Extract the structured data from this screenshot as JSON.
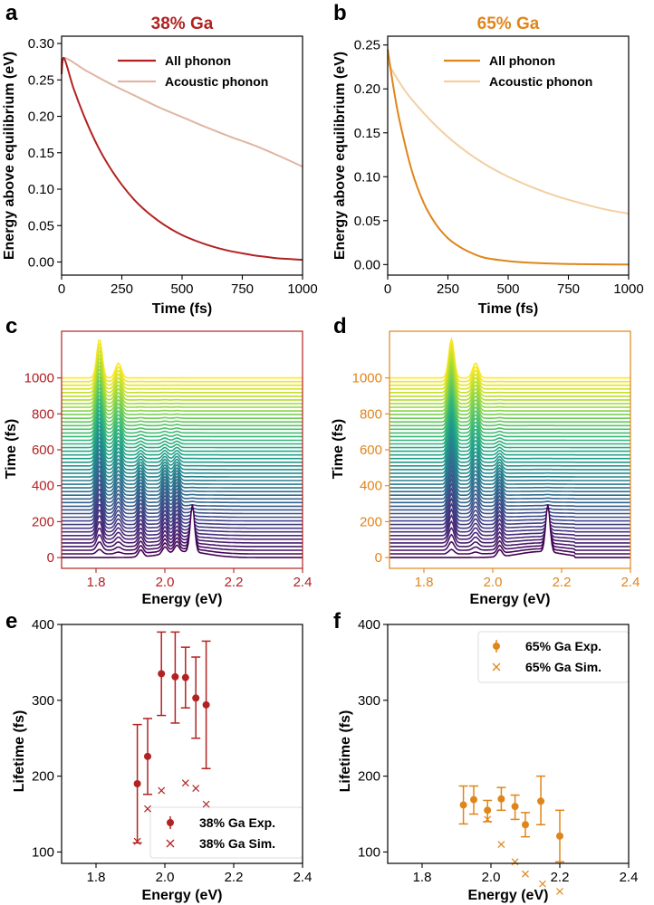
{
  "colors": {
    "red": "#b22222",
    "orange": "#e0851a",
    "red_light": "#e0b5a3",
    "orange_light": "#f3cfa2"
  },
  "chart_data": [
    {
      "panel": "a",
      "type": "line",
      "title": "38% Ga",
      "xlabel": "Time (fs)",
      "ylabel": "Energy above equilibrium (eV)",
      "xlim": [
        0,
        1000
      ],
      "ylim": [
        -0.018,
        0.31
      ],
      "xticks": [
        "0",
        "250",
        "500",
        "750",
        "1000"
      ],
      "yticks": [
        "0.00",
        "0.05",
        "0.10",
        "0.15",
        "0.20",
        "0.25",
        "0.30"
      ],
      "series": [
        {
          "name": "All phonon",
          "color": "#b22222",
          "x": [
            0,
            10,
            50,
            100,
            150,
            200,
            250,
            300,
            350,
            400,
            450,
            500,
            550,
            600,
            650,
            700,
            750,
            800,
            850,
            900,
            950,
            1000
          ],
          "y": [
            0.258,
            0.28,
            0.238,
            0.195,
            0.159,
            0.13,
            0.106,
            0.086,
            0.07,
            0.057,
            0.046,
            0.037,
            0.03,
            0.024,
            0.019,
            0.015,
            0.012,
            0.009,
            0.007,
            0.005,
            0.004,
            0.003
          ]
        },
        {
          "name": "Acoustic phonon",
          "color": "#e0b5a3",
          "x": [
            0,
            10,
            100,
            200,
            300,
            400,
            500,
            600,
            700,
            800,
            900,
            1000
          ],
          "y": [
            0.258,
            0.28,
            0.263,
            0.245,
            0.229,
            0.213,
            0.199,
            0.185,
            0.172,
            0.16,
            0.146,
            0.131
          ]
        }
      ]
    },
    {
      "panel": "b",
      "type": "line",
      "title": "65% Ga",
      "xlabel": "Time (fs)",
      "ylabel": "Energy above equilibrium (eV)",
      "xlim": [
        0,
        1000
      ],
      "ylim": [
        -0.012,
        0.26
      ],
      "xticks": [
        "0",
        "250",
        "500",
        "750",
        "1000"
      ],
      "yticks": [
        "0.00",
        "0.05",
        "0.10",
        "0.15",
        "0.20",
        "0.25"
      ],
      "series": [
        {
          "name": "All phonon",
          "color": "#e0851a",
          "x": [
            0,
            25,
            50,
            100,
            150,
            200,
            250,
            300,
            350,
            400,
            500,
            600,
            700,
            800,
            900,
            1000
          ],
          "y": [
            0.245,
            0.2,
            0.163,
            0.107,
            0.07,
            0.046,
            0.03,
            0.02,
            0.013,
            0.008,
            0.004,
            0.002,
            0.001,
            0.0005,
            0.0002,
            0.0001
          ]
        },
        {
          "name": "Acoustic phonon",
          "color": "#f3cfa2",
          "x": [
            0,
            50,
            100,
            200,
            300,
            400,
            500,
            600,
            700,
            800,
            900,
            1000
          ],
          "y": [
            0.23,
            0.207,
            0.188,
            0.158,
            0.134,
            0.115,
            0.1,
            0.088,
            0.078,
            0.07,
            0.063,
            0.058
          ]
        }
      ]
    },
    {
      "panel": "c",
      "type": "ridgeline",
      "xlabel": "Energy (eV)",
      "ylabel": "Time (fs)",
      "xlim": [
        1.7,
        2.4
      ],
      "ylim": [
        -60,
        1260
      ],
      "xticks": [
        "1.8",
        "2.0",
        "2.2",
        "2.4"
      ],
      "yticks": [
        "0",
        "200",
        "400",
        "600",
        "800",
        "1000"
      ],
      "tick_color": "#b22222",
      "initial_peak": 2.08,
      "peaks": [
        1.81,
        1.865,
        1.93,
        2.0,
        2.035,
        2.08
      ],
      "tail_end": 2.3
    },
    {
      "panel": "d",
      "type": "ridgeline",
      "xlabel": "Energy (eV)",
      "ylabel": "Time (fs)",
      "xlim": [
        1.7,
        2.4
      ],
      "ylim": [
        -60,
        1260
      ],
      "xticks": [
        "1.8",
        "2.0",
        "2.2",
        "2.4"
      ],
      "yticks": [
        "0",
        "200",
        "400",
        "600",
        "800",
        "1000"
      ],
      "tick_color": "#e0851a",
      "initial_peak": 2.16,
      "peaks": [
        1.88,
        1.95,
        2.02,
        2.16
      ],
      "tail_end": 2.22
    },
    {
      "panel": "e",
      "type": "scatter",
      "xlabel": "Energy (eV)",
      "ylabel": "Lifetime (fs)",
      "xlim": [
        1.7,
        2.4
      ],
      "ylim": [
        85,
        400
      ],
      "xticks": [
        "1.8",
        "2.0",
        "2.2",
        "2.4"
      ],
      "yticks": [
        "100",
        "200",
        "300",
        "400"
      ],
      "legend": "bottom-right",
      "series": [
        {
          "name": "38% Ga Exp.",
          "color": "#b22222",
          "marker": "circle",
          "x": [
            1.92,
            1.95,
            1.99,
            2.03,
            2.06,
            2.09,
            2.12
          ],
          "y": [
            190,
            226,
            335,
            331,
            330,
            303,
            294
          ],
          "err_low": [
            112,
            176,
            280,
            270,
            290,
            250,
            210
          ],
          "err_high": [
            268,
            276,
            390,
            390,
            370,
            357,
            378
          ]
        },
        {
          "name": "38% Ga Sim.",
          "color": "#b22222",
          "marker": "x",
          "x": [
            1.92,
            1.95,
            1.99,
            2.06,
            2.09,
            2.12
          ],
          "y": [
            114,
            157,
            181,
            191,
            184,
            163
          ]
        }
      ]
    },
    {
      "panel": "f",
      "type": "scatter",
      "xlabel": "Energy (eV)",
      "ylabel": "Lifetime (fs)",
      "xlim": [
        1.7,
        2.4
      ],
      "ylim": [
        85,
        400
      ],
      "xticks": [
        "1.8",
        "2.0",
        "2.2",
        "2.4"
      ],
      "yticks": [
        "100",
        "200",
        "300",
        "400"
      ],
      "legend": "top-right",
      "series": [
        {
          "name": "65% Ga Exp.",
          "color": "#e0851a",
          "marker": "circle",
          "x": [
            1.92,
            1.95,
            1.99,
            2.03,
            2.07,
            2.1,
            2.145,
            2.2
          ],
          "y": [
            162,
            169,
            155,
            170,
            160,
            136,
            167,
            121
          ],
          "err_low": [
            137,
            150,
            140,
            155,
            143,
            120,
            136,
            87
          ],
          "err_high": [
            187,
            187,
            168,
            185,
            175,
            152,
            200,
            155
          ]
        },
        {
          "name": "65% Ga Sim.",
          "color": "#e0851a",
          "marker": "x",
          "x": [
            1.99,
            2.03,
            2.07,
            2.1,
            2.15,
            2.2
          ],
          "y": [
            143,
            110,
            87,
            71,
            58,
            48
          ]
        }
      ]
    }
  ]
}
